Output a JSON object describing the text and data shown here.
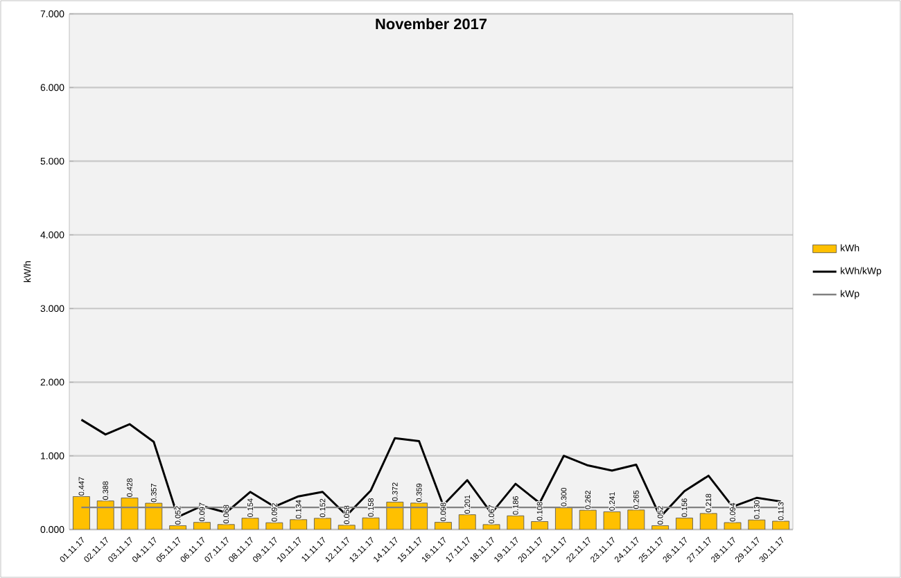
{
  "chart_data": {
    "type": "bar",
    "title": "November 2017",
    "ylabel": "kW/h",
    "categories": [
      "01.11.17",
      "02.11.17",
      "03.11.17",
      "04.11.17",
      "05.11.17",
      "06.11.17",
      "07.11.17",
      "08.11.17",
      "09.11.17",
      "10.11.17",
      "11.11.17",
      "12.11.17",
      "13.11.17",
      "14.11.17",
      "15.11.17",
      "16.11.17",
      "17.11.17",
      "18.11.17",
      "19.11.17",
      "20.11.17",
      "21.11.17",
      "22.11.17",
      "23.11.17",
      "24.11.17",
      "25.11.17",
      "26.11.17",
      "27.11.17",
      "28.11.17",
      "29.11.17",
      "30.11.17"
    ],
    "series": [
      {
        "name": "kWh",
        "color": "#ffc000",
        "values": [
          0.447,
          0.388,
          0.428,
          0.357,
          0.052,
          0.097,
          0.068,
          0.154,
          0.092,
          0.134,
          0.152,
          0.058,
          0.158,
          0.372,
          0.359,
          0.098,
          0.201,
          0.067,
          0.186,
          0.108,
          0.3,
          0.262,
          0.241,
          0.265,
          0.052,
          0.156,
          0.218,
          0.094,
          0.13,
          0.113
        ],
        "value_labels": [
          "0.447",
          "0.388",
          "0.428",
          "0.357",
          "0.052",
          "0.097",
          "0.068",
          "0.154",
          "0.092",
          "0.134",
          "0.152",
          "0.058",
          "0.158",
          "0.372",
          "0.359",
          "0.098",
          "0.201",
          "0.067",
          "0.186",
          "0.108",
          "0.300",
          "0.262",
          "0.241",
          "0.265",
          "0.052",
          "0.156",
          "0.218",
          "0.094",
          "0.130",
          "0.113"
        ]
      },
      {
        "name": "kWh/kWp",
        "type": "line",
        "color": "#000000",
        "values": [
          1.49,
          1.29,
          1.43,
          1.19,
          0.17,
          0.32,
          0.23,
          0.51,
          0.31,
          0.45,
          0.51,
          0.19,
          0.53,
          1.24,
          1.2,
          0.33,
          0.67,
          0.22,
          0.62,
          0.36,
          1.0,
          0.87,
          0.8,
          0.88,
          0.17,
          0.52,
          0.73,
          0.31,
          0.43,
          0.38
        ]
      },
      {
        "name": "kWp",
        "type": "line",
        "color": "#808080",
        "values": [
          0.3,
          0.3,
          0.3,
          0.3,
          0.3,
          0.3,
          0.3,
          0.3,
          0.3,
          0.3,
          0.3,
          0.3,
          0.3,
          0.3,
          0.3,
          0.3,
          0.3,
          0.3,
          0.3,
          0.3,
          0.3,
          0.3,
          0.3,
          0.3,
          0.3,
          0.3,
          0.3,
          0.3,
          0.3,
          0.3
        ]
      }
    ],
    "ylim": [
      0,
      7
    ],
    "yticks": [
      {
        "value": 0,
        "label": "0.000"
      },
      {
        "value": 1,
        "label": "1.000"
      },
      {
        "value": 2,
        "label": "2.000"
      },
      {
        "value": 3,
        "label": "3.000"
      },
      {
        "value": 4,
        "label": "4.000"
      },
      {
        "value": 5,
        "label": "5.000"
      },
      {
        "value": 6,
        "label": "6.000"
      },
      {
        "value": 7,
        "label": "7.000"
      }
    ],
    "grid": "y",
    "legend": "right"
  }
}
